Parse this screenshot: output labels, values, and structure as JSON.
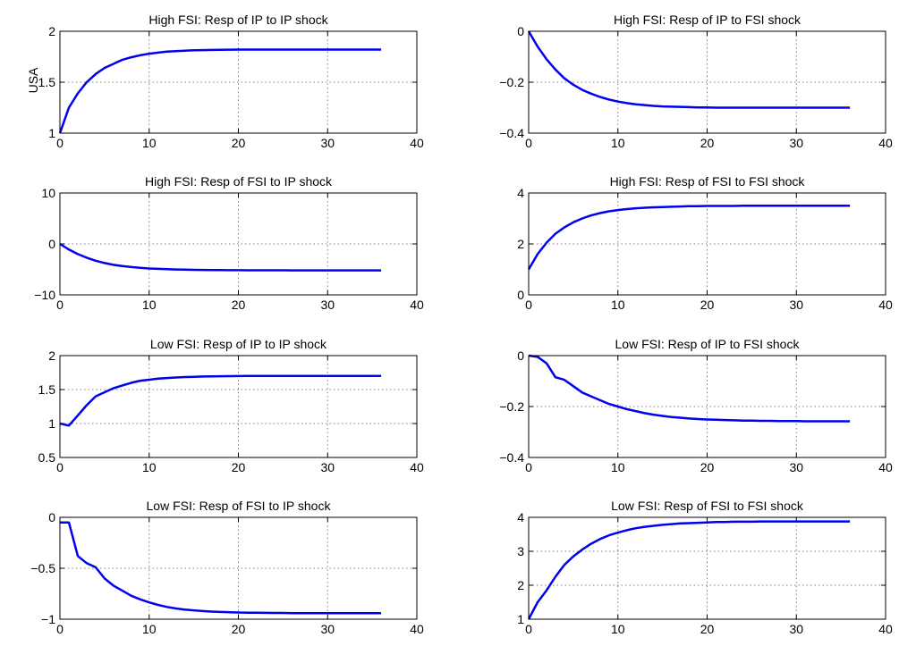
{
  "figure": {
    "row_label": "USA"
  },
  "style": {
    "line_color": "#0000ee",
    "grid_color": "#808080",
    "axis_color": "#000000",
    "background": "#ffffff"
  },
  "chart_data": [
    {
      "type": "line",
      "title": "High FSI: Resp of IP to IP shock",
      "xlim": [
        0,
        40
      ],
      "ylim": [
        1,
        2
      ],
      "xticks": [
        "0",
        "10",
        "20",
        "30",
        "40"
      ],
      "yticks": [
        "1",
        "1.5",
        "2"
      ],
      "grid": true,
      "x": [
        0,
        1,
        2,
        3,
        4,
        5,
        6,
        7,
        8,
        9,
        10,
        11,
        12,
        13,
        14,
        15,
        16,
        17,
        18,
        19,
        20,
        21,
        22,
        23,
        24,
        25,
        26,
        27,
        28,
        29,
        30,
        31,
        32,
        33,
        34,
        35,
        36
      ],
      "y": [
        1.0,
        1.25,
        1.39,
        1.5,
        1.58,
        1.64,
        1.68,
        1.72,
        1.745,
        1.765,
        1.78,
        1.79,
        1.8,
        1.805,
        1.81,
        1.813,
        1.815,
        1.817,
        1.818,
        1.819,
        1.82,
        1.82,
        1.82,
        1.82,
        1.82,
        1.82,
        1.82,
        1.82,
        1.82,
        1.82,
        1.82,
        1.82,
        1.82,
        1.82,
        1.82,
        1.82,
        1.82
      ]
    },
    {
      "type": "line",
      "title": "High FSI: Resp of IP to FSI shock",
      "xlim": [
        0,
        40
      ],
      "ylim": [
        -0.4,
        0
      ],
      "xticks": [
        "0",
        "10",
        "20",
        "30",
        "40"
      ],
      "yticks": [
        "−0.4",
        "−0.2",
        "0"
      ],
      "grid": true,
      "x": [
        0,
        1,
        2,
        3,
        4,
        5,
        6,
        7,
        8,
        9,
        10,
        11,
        12,
        13,
        14,
        15,
        16,
        17,
        18,
        19,
        20,
        21,
        22,
        23,
        24,
        25,
        26,
        27,
        28,
        29,
        30,
        31,
        32,
        33,
        34,
        35,
        36
      ],
      "y": [
        0,
        -0.06,
        -0.11,
        -0.15,
        -0.185,
        -0.21,
        -0.23,
        -0.245,
        -0.258,
        -0.268,
        -0.276,
        -0.282,
        -0.287,
        -0.29,
        -0.293,
        -0.295,
        -0.296,
        -0.297,
        -0.298,
        -0.299,
        -0.299,
        -0.3,
        -0.3,
        -0.3,
        -0.3,
        -0.3,
        -0.3,
        -0.3,
        -0.3,
        -0.3,
        -0.3,
        -0.3,
        -0.3,
        -0.3,
        -0.3,
        -0.3,
        -0.3
      ]
    },
    {
      "type": "line",
      "title": "High FSI: Resp of FSI to IP shock",
      "xlim": [
        0,
        40
      ],
      "ylim": [
        -10,
        10
      ],
      "xticks": [
        "0",
        "10",
        "20",
        "30",
        "40"
      ],
      "yticks": [
        "−10",
        "0",
        "10"
      ],
      "grid": true,
      "x": [
        0,
        1,
        2,
        3,
        4,
        5,
        6,
        7,
        8,
        9,
        10,
        11,
        12,
        13,
        14,
        15,
        16,
        17,
        18,
        19,
        20,
        21,
        22,
        23,
        24,
        25,
        26,
        27,
        28,
        29,
        30,
        31,
        32,
        33,
        34,
        35,
        36
      ],
      "y": [
        0,
        -1.1,
        -2.0,
        -2.7,
        -3.3,
        -3.75,
        -4.1,
        -4.35,
        -4.55,
        -4.7,
        -4.82,
        -4.9,
        -4.97,
        -5.02,
        -5.06,
        -5.09,
        -5.11,
        -5.13,
        -5.14,
        -5.15,
        -5.16,
        -5.17,
        -5.17,
        -5.18,
        -5.18,
        -5.18,
        -5.19,
        -5.19,
        -5.19,
        -5.19,
        -5.19,
        -5.2,
        -5.2,
        -5.2,
        -5.2,
        -5.2,
        -5.2
      ]
    },
    {
      "type": "line",
      "title": "High FSI: Resp of FSI to FSI shock",
      "xlim": [
        0,
        40
      ],
      "ylim": [
        0,
        4
      ],
      "xticks": [
        "0",
        "10",
        "20",
        "30",
        "40"
      ],
      "yticks": [
        "0",
        "2",
        "4"
      ],
      "grid": true,
      "x": [
        0,
        1,
        2,
        3,
        4,
        5,
        6,
        7,
        8,
        9,
        10,
        11,
        12,
        13,
        14,
        15,
        16,
        17,
        18,
        19,
        20,
        21,
        22,
        23,
        24,
        25,
        26,
        27,
        28,
        29,
        30,
        31,
        32,
        33,
        34,
        35,
        36
      ],
      "y": [
        1.0,
        1.6,
        2.05,
        2.4,
        2.65,
        2.85,
        3.0,
        3.12,
        3.21,
        3.28,
        3.33,
        3.37,
        3.4,
        3.42,
        3.44,
        3.45,
        3.46,
        3.47,
        3.48,
        3.48,
        3.49,
        3.49,
        3.49,
        3.49,
        3.5,
        3.5,
        3.5,
        3.5,
        3.5,
        3.5,
        3.5,
        3.5,
        3.5,
        3.5,
        3.5,
        3.5,
        3.5
      ]
    },
    {
      "type": "line",
      "title": "Low FSI: Resp of IP to IP shock",
      "xlim": [
        0,
        40
      ],
      "ylim": [
        0.5,
        2
      ],
      "xticks": [
        "0",
        "10",
        "20",
        "30",
        "40"
      ],
      "yticks": [
        "0.5",
        "1",
        "1.5",
        "2"
      ],
      "grid": true,
      "x": [
        0,
        1,
        2,
        3,
        4,
        5,
        6,
        7,
        8,
        9,
        10,
        11,
        12,
        13,
        14,
        15,
        16,
        17,
        18,
        19,
        20,
        21,
        22,
        23,
        24,
        25,
        26,
        27,
        28,
        29,
        30,
        31,
        32,
        33,
        34,
        35,
        36
      ],
      "y": [
        1.0,
        0.97,
        1.12,
        1.27,
        1.4,
        1.46,
        1.52,
        1.56,
        1.6,
        1.63,
        1.645,
        1.66,
        1.67,
        1.678,
        1.684,
        1.688,
        1.692,
        1.694,
        1.696,
        1.698,
        1.699,
        1.7,
        1.7,
        1.7,
        1.7,
        1.7,
        1.7,
        1.7,
        1.7,
        1.7,
        1.7,
        1.7,
        1.7,
        1.7,
        1.7,
        1.7,
        1.7
      ]
    },
    {
      "type": "line",
      "title": "Low FSI: Resp of IP to FSI shock",
      "xlim": [
        0,
        40
      ],
      "ylim": [
        -0.4,
        0
      ],
      "xticks": [
        "0",
        "10",
        "20",
        "30",
        "40"
      ],
      "yticks": [
        "−0.4",
        "−0.2",
        "0"
      ],
      "grid": true,
      "x": [
        0,
        1,
        2,
        3,
        4,
        5,
        6,
        7,
        8,
        9,
        10,
        11,
        12,
        13,
        14,
        15,
        16,
        17,
        18,
        19,
        20,
        21,
        22,
        23,
        24,
        25,
        26,
        27,
        28,
        29,
        30,
        31,
        32,
        33,
        34,
        35,
        36
      ],
      "y": [
        0,
        -0.005,
        -0.03,
        -0.085,
        -0.095,
        -0.12,
        -0.145,
        -0.16,
        -0.175,
        -0.19,
        -0.2,
        -0.21,
        -0.218,
        -0.226,
        -0.232,
        -0.237,
        -0.241,
        -0.244,
        -0.247,
        -0.249,
        -0.251,
        -0.252,
        -0.253,
        -0.254,
        -0.255,
        -0.255,
        -0.256,
        -0.256,
        -0.257,
        -0.257,
        -0.257,
        -0.258,
        -0.258,
        -0.258,
        -0.258,
        -0.258,
        -0.258
      ]
    },
    {
      "type": "line",
      "title": "Low FSI: Resp of FSI to IP shock",
      "xlim": [
        0,
        40
      ],
      "ylim": [
        -1,
        0
      ],
      "xticks": [
        "0",
        "10",
        "20",
        "30",
        "40"
      ],
      "yticks": [
        "−1",
        "−0.5",
        "0"
      ],
      "grid": true,
      "x": [
        0,
        1,
        2,
        3,
        4,
        5,
        6,
        7,
        8,
        9,
        10,
        11,
        12,
        13,
        14,
        15,
        16,
        17,
        18,
        19,
        20,
        21,
        22,
        23,
        24,
        25,
        26,
        27,
        28,
        29,
        30,
        31,
        32,
        33,
        34,
        35,
        36
      ],
      "y": [
        -0.05,
        -0.05,
        -0.38,
        -0.45,
        -0.49,
        -0.6,
        -0.67,
        -0.72,
        -0.77,
        -0.805,
        -0.835,
        -0.86,
        -0.88,
        -0.895,
        -0.905,
        -0.913,
        -0.92,
        -0.925,
        -0.929,
        -0.932,
        -0.934,
        -0.936,
        -0.937,
        -0.938,
        -0.939,
        -0.939,
        -0.94,
        -0.94,
        -0.94,
        -0.94,
        -0.94,
        -0.94,
        -0.94,
        -0.94,
        -0.94,
        -0.94,
        -0.94
      ]
    },
    {
      "type": "line",
      "title": "Low FSI: Resp of FSI to FSI shock",
      "xlim": [
        0,
        40
      ],
      "ylim": [
        1,
        4
      ],
      "xticks": [
        "0",
        "10",
        "20",
        "30",
        "40"
      ],
      "yticks": [
        "1",
        "2",
        "3",
        "4"
      ],
      "grid": true,
      "x": [
        0,
        1,
        2,
        3,
        4,
        5,
        6,
        7,
        8,
        9,
        10,
        11,
        12,
        13,
        14,
        15,
        16,
        17,
        18,
        19,
        20,
        21,
        22,
        23,
        24,
        25,
        26,
        27,
        28,
        29,
        30,
        31,
        32,
        33,
        34,
        35,
        36
      ],
      "y": [
        1.0,
        1.5,
        1.85,
        2.25,
        2.6,
        2.85,
        3.05,
        3.22,
        3.36,
        3.47,
        3.55,
        3.62,
        3.68,
        3.72,
        3.75,
        3.78,
        3.8,
        3.82,
        3.83,
        3.84,
        3.85,
        3.86,
        3.86,
        3.87,
        3.87,
        3.87,
        3.88,
        3.88,
        3.88,
        3.88,
        3.88,
        3.88,
        3.88,
        3.88,
        3.88,
        3.88,
        3.88
      ]
    }
  ]
}
